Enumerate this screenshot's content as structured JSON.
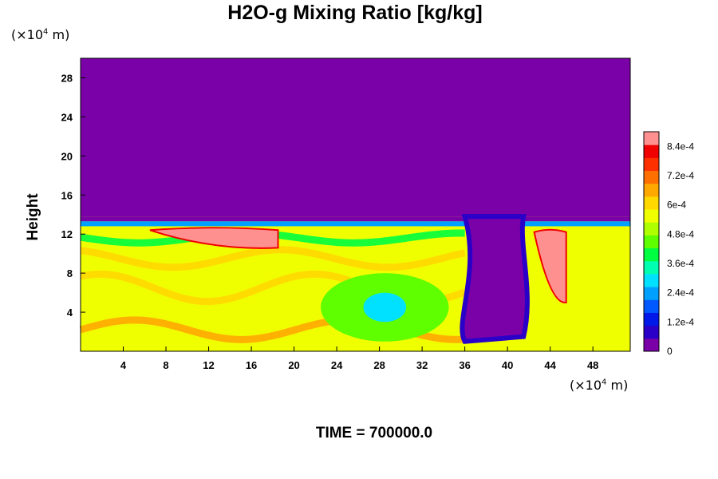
{
  "chart_data": {
    "type": "heatmap",
    "title": "H2O-g Mixing Ratio [kg/kg]",
    "ylabel": "Height",
    "xlabel": "",
    "x_unit_label": {
      "prefix": "(×10",
      "exp": "4",
      "suffix": " m)"
    },
    "y_unit_label": {
      "prefix": "(×10",
      "exp": "4",
      "suffix": " m)"
    },
    "xlim": [
      0,
      51.5
    ],
    "ylim": [
      0,
      30
    ],
    "x_ticks": [
      {
        "value": 4,
        "label": "4"
      },
      {
        "value": 8,
        "label": "8"
      },
      {
        "value": 12,
        "label": "12"
      },
      {
        "value": 16,
        "label": "16"
      },
      {
        "value": 20,
        "label": "20"
      },
      {
        "value": 24,
        "label": "24"
      },
      {
        "value": 28,
        "label": "28"
      },
      {
        "value": 32,
        "label": "32"
      },
      {
        "value": 36,
        "label": "36"
      },
      {
        "value": 40,
        "label": "40"
      },
      {
        "value": 44,
        "label": "44"
      },
      {
        "value": 48,
        "label": "48"
      }
    ],
    "y_ticks": [
      {
        "value": 4,
        "label": "4"
      },
      {
        "value": 8,
        "label": "8"
      },
      {
        "value": 12,
        "label": "12"
      },
      {
        "value": 16,
        "label": "16"
      },
      {
        "value": 20,
        "label": "20"
      },
      {
        "value": 24,
        "label": "24"
      },
      {
        "value": 28,
        "label": "28"
      }
    ],
    "colorbar": {
      "min": 0,
      "max": 0.0009,
      "tick_labels": [
        {
          "value": 0,
          "label": "0"
        },
        {
          "value": 0.00012,
          "label": "1.2e-4"
        },
        {
          "value": 0.00024,
          "label": "2.4e-4"
        },
        {
          "value": 0.00036,
          "label": "3.6e-4"
        },
        {
          "value": 0.00048,
          "label": "4.8e-4"
        },
        {
          "value": 0.0006,
          "label": "6e-4"
        },
        {
          "value": 0.00072,
          "label": "7.2e-4"
        },
        {
          "value": 0.00084,
          "label": "8.4e-4"
        }
      ],
      "colors": [
        "#7a00a8",
        "#2a00c8",
        "#0018e8",
        "#0058ff",
        "#00a0ff",
        "#00e0ff",
        "#00ffb0",
        "#00ff40",
        "#60ff00",
        "#b0ff00",
        "#f0ff00",
        "#ffd800",
        "#ffa800",
        "#ff7000",
        "#ff3000",
        "#f00000",
        "#ff9090"
      ]
    },
    "field_description": {
      "background_value": 0,
      "moist_layer_top": 13.8,
      "regions": [
        {
          "kind": "ellipse",
          "x": 28.5,
          "y": 4.5,
          "rx": 2.0,
          "ry": 1.5,
          "value": 0.0003
        },
        {
          "kind": "ellipse",
          "x": 28.5,
          "y": 4.5,
          "rx": 6.0,
          "ry": 3.5,
          "value": 0.00045
        },
        {
          "kind": "cap",
          "x": [
            6.5,
            18.5
          ],
          "y": [
            10.6,
            12.4
          ],
          "value": 0.00088
        },
        {
          "kind": "dry_notch",
          "x": [
            36,
            41.5
          ],
          "y": [
            0,
            13.8
          ],
          "value": 0.0001
        },
        {
          "kind": "cap",
          "x": [
            42.5,
            45.5
          ],
          "y": [
            5,
            12.2
          ],
          "value": 0.00088
        }
      ]
    }
  },
  "time_label": "TIME = 700000.0"
}
